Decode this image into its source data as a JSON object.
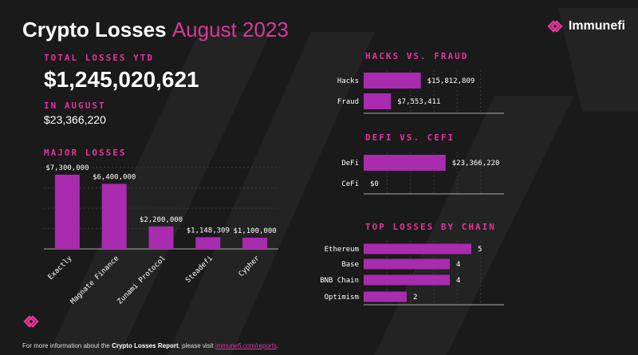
{
  "header": {
    "title": "Crypto Losses",
    "period": "August 2023",
    "brand": "Immunefi"
  },
  "total": {
    "label": "TOTAL LOSSES YTD",
    "value": "$1,245,020,621"
  },
  "august": {
    "label": "IN AUGUST",
    "value": "$23,366,220"
  },
  "colors": {
    "bar": "#a82bb0",
    "accent": "#e0359a",
    "background": "#1a1a1a"
  },
  "chart_data": [
    {
      "type": "bar",
      "title": "MAJOR LOSSES",
      "categories": [
        "Exactly",
        "Magnate Finance",
        "Zunami Protocol",
        "Steadefi",
        "Cypher"
      ],
      "values": [
        7300000,
        6400000,
        2200000,
        1148309,
        1100000
      ],
      "labels": [
        "$7,300,000",
        "$6,400,000",
        "$2,200,000",
        "$1,148,309",
        "$1,100,000"
      ],
      "ylim": [
        0,
        8000000
      ]
    },
    {
      "type": "bar",
      "orientation": "horizontal",
      "title": "HACKS VS. FRAUD",
      "categories": [
        "Hacks",
        "Fraud"
      ],
      "values": [
        15812809,
        7553411
      ],
      "labels": [
        "$15,812,809",
        "$7,553,411"
      ],
      "xlim": [
        0,
        30000000
      ]
    },
    {
      "type": "bar",
      "orientation": "horizontal",
      "title": "DEFI VS. CEFI",
      "categories": [
        "DeFi",
        "CeFi"
      ],
      "values": [
        23366220,
        0
      ],
      "labels": [
        "$23,366,220",
        "$0"
      ],
      "xlim": [
        0,
        30000000
      ]
    },
    {
      "type": "bar",
      "orientation": "horizontal",
      "title": "TOP LOSSES BY CHAIN",
      "categories": [
        "Ethereum",
        "Base",
        "BNB Chain",
        "Optimism"
      ],
      "values": [
        5,
        4,
        4,
        2
      ],
      "labels": [
        "5",
        "4",
        "4",
        "2"
      ],
      "xlim": [
        0,
        8
      ]
    }
  ],
  "footer": {
    "prefix": "For more information about the ",
    "report": "Crypto Losses Report",
    "middle": ", please visit ",
    "link": "immunefi.com/reports",
    "suffix": "."
  }
}
